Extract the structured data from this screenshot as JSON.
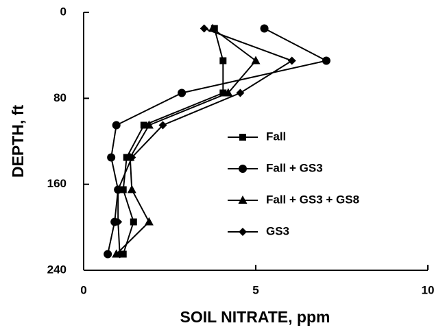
{
  "chart_data": {
    "type": "line",
    "orientation": "depth-vertical",
    "xlabel": "SOIL NITRATE, ppm",
    "ylabel": "DEPTH, ft",
    "y": [
      15,
      45,
      75,
      105,
      135,
      165,
      195,
      225
    ],
    "xlim": [
      0,
      10
    ],
    "xticks": [
      0,
      5,
      10
    ],
    "ylim": [
      240,
      0
    ],
    "yticks": [
      0,
      80,
      160,
      240
    ],
    "legend": "right",
    "series": [
      {
        "name": "Fall",
        "color": "#000000",
        "marker": "square",
        "values": [
          3.8,
          4.05,
          4.05,
          1.75,
          1.25,
          1.15,
          1.45,
          1.15
        ]
      },
      {
        "name": "Fall + GS3",
        "color": "#000000",
        "marker": "circle",
        "values": [
          5.25,
          7.05,
          2.85,
          0.95,
          0.8,
          1.0,
          0.9,
          0.7
        ]
      },
      {
        "name": "Fall + GS3 + GS8",
        "color": "#000000",
        "marker": "triangle",
        "values": [
          3.75,
          5.0,
          4.2,
          1.9,
          1.35,
          1.4,
          1.9,
          0.95
        ]
      },
      {
        "name": "GS3",
        "color": "#000000",
        "marker": "diamond",
        "values": [
          3.5,
          6.05,
          4.55,
          2.3,
          1.4,
          1.0,
          1.0,
          1.05
        ]
      }
    ]
  }
}
